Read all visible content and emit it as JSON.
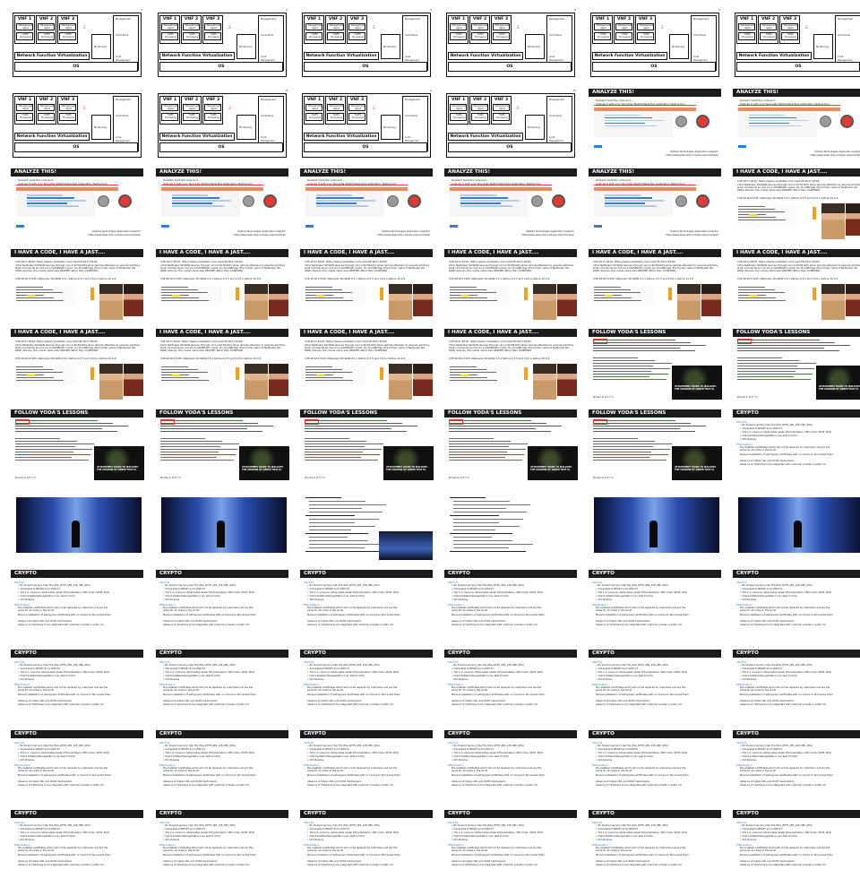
{
  "nfv": {
    "vnfs": [
      "VNF 1",
      "VNF 2",
      "VNF 3"
    ],
    "mgmt_agent": "Management Agent",
    "traffic": "Traffic Processing",
    "management": "Management",
    "controllers": "Controllers",
    "monitoring": "Monitoring",
    "local_mgmt": "Local Management",
    "nfv_label": "Network Function Virtualization",
    "os_label": "OS"
  },
  "analyze": {
    "title": "ANALYZE THIS!",
    "bullets": [
      "Runtest! Grab the code and...",
      "Analyze it with your favourite Static/Interactive Application Testing tool"
    ],
    "footer": "Positive Technologies Application Inspector https://www.ptsecurity.com/ww-en/products/ai/"
  },
  "code": {
    "title": "I HAVE A CODE, I HAVE A JAST....",
    "lines": [
      "CVE-2017-6316: https://www.cvedetails.com/cve/CVE-2017-6316/",
      "Citrix NetScaler SD-WAN devices through v9.1.2.26.561201 allow remote attackers to execute arbitrary shell commands as root via a CGISESSID cookie. On CloudBridge (the former name of NetScaler SD-WAN) devices, the cookie name was CBAPIPP rather than CGISESSID.",
      "CVE-2018-17445: Netscaler SD-WAN 9.3.x before 9.3.5 and 10.0.x before 10.0.4"
    ]
  },
  "yoda": {
    "title": "FOLLOW YODA'S LESSONS",
    "banner": "ATTACHMENT LEADS TO JEALOUSY. THE SHADOW OF GREED THAT IS.",
    "footer": "Proved in 9.3.*-*s"
  },
  "crypto": {
    "title": "CRYPTO",
    "sections": [
      "SSL/TLS",
      "Effectivation"
    ],
    "bullets": [
      "No forward secrecy (like TLS_RSA_WITH_AES_128_CBC_SHA)",
      "Vulnerable to BEAST and LUCKY13",
      "TLS 1.2; insecure ciphersuites (weak DH parameters, CBC mode, SSH3, RC4)",
      "Client-Initiated Renegotiation (can lead to DoS)",
      "Old libraries",
      "Pre-installed certificates which will not be replaced by customers and are the same for all nodes in the world",
      "Manual installation of self-signed certificates with no chance to fail revoke them",
      "Absence of Cipher CRL and OCSP mechanisms",
      "Absence of interfaces to be integrated with customer private or public CA"
    ]
  },
  "layout": {
    "cols": 6,
    "rows": 11,
    "types": [
      [
        "nfv",
        "nfv",
        "nfv",
        "nfv",
        "nfv",
        "nfv"
      ],
      [
        "nfv",
        "nfv",
        "nfv",
        "nfv",
        "analyze",
        "analyze"
      ],
      [
        "analyze",
        "analyze",
        "analyze",
        "analyze",
        "analyze",
        "code"
      ],
      [
        "code",
        "code",
        "code",
        "code",
        "code",
        "code"
      ],
      [
        "code",
        "code",
        "code",
        "code",
        "yoda",
        "yoda"
      ],
      [
        "yoda",
        "yoda",
        "yoda",
        "yoda",
        "yoda",
        "crypto"
      ],
      [
        "star",
        "star",
        "starText",
        "starText",
        "star",
        "star"
      ],
      [
        "crypto",
        "crypto",
        "crypto",
        "crypto",
        "crypto",
        "crypto"
      ],
      [
        "crypto",
        "crypto",
        "crypto",
        "crypto",
        "crypto",
        "crypto"
      ],
      [
        "crypto",
        "crypto",
        "crypto",
        "crypto",
        "crypto",
        "crypto"
      ],
      [
        "crypto",
        "crypto",
        "crypto",
        "crypto",
        "crypto",
        "crypto"
      ]
    ]
  },
  "colors": {
    "bar": "#1b1b1b",
    "red": "#e53935",
    "orange": "#f08a5d",
    "blue": "#2f7fd6",
    "green": "#1e8a2e"
  }
}
